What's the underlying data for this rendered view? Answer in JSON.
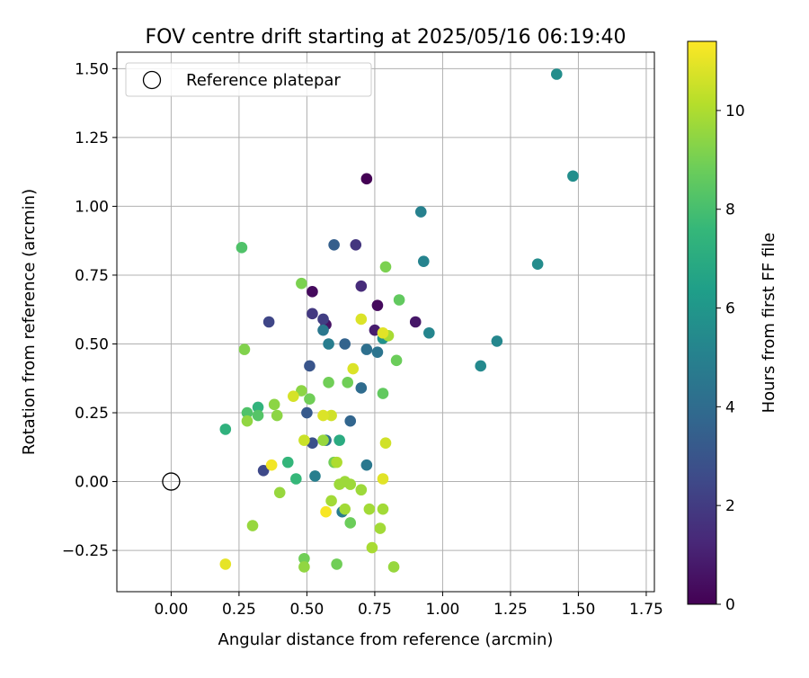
{
  "chart_data": {
    "type": "scatter",
    "title": "FOV centre drift starting at 2025/05/16 06:19:40",
    "xlabel": "Angular distance from reference (arcmin)",
    "ylabel": "Rotation from reference (arcmin)",
    "xlim": [
      -0.2,
      1.78
    ],
    "ylim": [
      -0.4,
      1.56
    ],
    "xticks": [
      0.0,
      0.25,
      0.5,
      0.75,
      1.0,
      1.25,
      1.5,
      1.75
    ],
    "xtick_labels": [
      "0.00",
      "0.25",
      "0.50",
      "0.75",
      "1.00",
      "1.25",
      "1.50",
      "1.75"
    ],
    "yticks": [
      -0.25,
      0.0,
      0.25,
      0.5,
      0.75,
      1.0,
      1.25,
      1.5
    ],
    "ytick_labels": [
      "−0.25",
      "0.00",
      "0.25",
      "0.50",
      "0.75",
      "1.00",
      "1.25",
      "1.50"
    ],
    "grid": true,
    "legend": {
      "location": "upper-left",
      "entries": [
        "Reference platepar"
      ]
    },
    "reference_point": {
      "x": 0.0,
      "y": 0.0,
      "marker": "open-circle",
      "color": "#000000"
    },
    "colorbar": {
      "label": "Hours from first FF file",
      "range": [
        0,
        11.4
      ],
      "ticks": [
        0,
        2,
        4,
        6,
        8,
        10
      ],
      "tick_labels": [
        "0",
        "2",
        "4",
        "6",
        "8",
        "10"
      ],
      "colormap": "viridis"
    },
    "points": [
      {
        "x": 0.72,
        "y": 1.1,
        "h": 0.0
      },
      {
        "x": 0.52,
        "y": 0.69,
        "h": 0.3
      },
      {
        "x": 0.76,
        "y": 0.64,
        "h": 0.3
      },
      {
        "x": 0.9,
        "y": 0.58,
        "h": 0.7
      },
      {
        "x": 0.57,
        "y": 0.57,
        "h": 0.6
      },
      {
        "x": 0.75,
        "y": 0.55,
        "h": 0.9
      },
      {
        "x": 0.7,
        "y": 0.71,
        "h": 1.4
      },
      {
        "x": 0.68,
        "y": 0.86,
        "h": 1.8
      },
      {
        "x": 0.52,
        "y": 0.61,
        "h": 1.9
      },
      {
        "x": 0.56,
        "y": 0.59,
        "h": 2.1
      },
      {
        "x": 0.36,
        "y": 0.58,
        "h": 2.4
      },
      {
        "x": 0.34,
        "y": 0.04,
        "h": 2.5
      },
      {
        "x": 0.52,
        "y": 0.14,
        "h": 2.8
      },
      {
        "x": 0.51,
        "y": 0.42,
        "h": 3.0
      },
      {
        "x": 0.5,
        "y": 0.25,
        "h": 3.2
      },
      {
        "x": 0.6,
        "y": 0.86,
        "h": 3.4
      },
      {
        "x": 0.64,
        "y": 0.5,
        "h": 3.6
      },
      {
        "x": 0.66,
        "y": 0.22,
        "h": 3.7
      },
      {
        "x": 0.7,
        "y": 0.34,
        "h": 4.0
      },
      {
        "x": 0.72,
        "y": 0.48,
        "h": 4.2
      },
      {
        "x": 0.76,
        "y": 0.47,
        "h": 4.4
      },
      {
        "x": 0.57,
        "y": 0.15,
        "h": 4.1
      },
      {
        "x": 0.72,
        "y": 0.06,
        "h": 4.6
      },
      {
        "x": 0.56,
        "y": 0.55,
        "h": 4.6
      },
      {
        "x": 0.58,
        "y": 0.5,
        "h": 4.8
      },
      {
        "x": 0.63,
        "y": -0.11,
        "h": 4.8
      },
      {
        "x": 0.53,
        "y": 0.02,
        "h": 4.9
      },
      {
        "x": 0.92,
        "y": 0.98,
        "h": 5.0
      },
      {
        "x": 0.93,
        "y": 0.8,
        "h": 5.1
      },
      {
        "x": 0.95,
        "y": 0.54,
        "h": 5.2
      },
      {
        "x": 1.2,
        "y": 0.51,
        "h": 5.3
      },
      {
        "x": 1.14,
        "y": 0.42,
        "h": 5.4
      },
      {
        "x": 1.35,
        "y": 0.79,
        "h": 5.5
      },
      {
        "x": 1.42,
        "y": 1.48,
        "h": 5.6
      },
      {
        "x": 1.48,
        "y": 1.11,
        "h": 5.6
      },
      {
        "x": 0.78,
        "y": 0.52,
        "h": 5.8
      },
      {
        "x": 0.62,
        "y": 0.15,
        "h": 7.0
      },
      {
        "x": 0.2,
        "y": 0.19,
        "h": 7.3
      },
      {
        "x": 0.32,
        "y": 0.27,
        "h": 7.4
      },
      {
        "x": 0.43,
        "y": 0.07,
        "h": 7.5
      },
      {
        "x": 0.46,
        "y": 0.01,
        "h": 7.6
      },
      {
        "x": 0.26,
        "y": 0.85,
        "h": 8.2
      },
      {
        "x": 0.28,
        "y": 0.25,
        "h": 8.2
      },
      {
        "x": 0.32,
        "y": 0.24,
        "h": 8.3
      },
      {
        "x": 0.84,
        "y": 0.66,
        "h": 8.6
      },
      {
        "x": 0.78,
        "y": 0.32,
        "h": 8.6
      },
      {
        "x": 0.83,
        "y": 0.44,
        "h": 8.8
      },
      {
        "x": 0.65,
        "y": 0.36,
        "h": 8.9
      },
      {
        "x": 0.58,
        "y": 0.36,
        "h": 8.9
      },
      {
        "x": 0.51,
        "y": 0.3,
        "h": 8.9
      },
      {
        "x": 0.6,
        "y": 0.07,
        "h": 8.9
      },
      {
        "x": 0.66,
        "y": -0.15,
        "h": 8.8
      },
      {
        "x": 0.49,
        "y": -0.28,
        "h": 8.9
      },
      {
        "x": 0.61,
        "y": -0.3,
        "h": 8.9
      },
      {
        "x": 0.79,
        "y": 0.78,
        "h": 9.1
      },
      {
        "x": 0.48,
        "y": 0.72,
        "h": 9.1
      },
      {
        "x": 0.27,
        "y": 0.48,
        "h": 9.2
      },
      {
        "x": 0.38,
        "y": 0.28,
        "h": 9.4
      },
      {
        "x": 0.39,
        "y": 0.24,
        "h": 9.4
      },
      {
        "x": 0.48,
        "y": 0.33,
        "h": 9.4
      },
      {
        "x": 0.28,
        "y": 0.22,
        "h": 9.5
      },
      {
        "x": 0.4,
        "y": -0.04,
        "h": 9.6
      },
      {
        "x": 0.3,
        "y": -0.16,
        "h": 9.6
      },
      {
        "x": 0.49,
        "y": -0.31,
        "h": 9.5
      },
      {
        "x": 0.82,
        "y": -0.31,
        "h": 9.6
      },
      {
        "x": 0.56,
        "y": 0.15,
        "h": 9.6
      },
      {
        "x": 0.62,
        "y": -0.01,
        "h": 9.7
      },
      {
        "x": 0.64,
        "y": 0.0,
        "h": 9.7
      },
      {
        "x": 0.66,
        "y": -0.01,
        "h": 9.7
      },
      {
        "x": 0.59,
        "y": -0.07,
        "h": 9.8
      },
      {
        "x": 0.64,
        "y": -0.1,
        "h": 9.8
      },
      {
        "x": 0.7,
        "y": -0.03,
        "h": 9.7
      },
      {
        "x": 0.73,
        "y": -0.1,
        "h": 9.8
      },
      {
        "x": 0.78,
        "y": -0.1,
        "h": 9.8
      },
      {
        "x": 0.77,
        "y": -0.17,
        "h": 9.8
      },
      {
        "x": 0.74,
        "y": -0.24,
        "h": 9.9
      },
      {
        "x": 0.8,
        "y": 0.53,
        "h": 9.9
      },
      {
        "x": 0.61,
        "y": 0.07,
        "h": 10.0
      },
      {
        "x": 0.49,
        "y": 0.15,
        "h": 10.5
      },
      {
        "x": 0.79,
        "y": 0.14,
        "h": 10.6
      },
      {
        "x": 0.59,
        "y": 0.24,
        "h": 10.6
      },
      {
        "x": 0.45,
        "y": 0.31,
        "h": 10.7
      },
      {
        "x": 0.67,
        "y": 0.41,
        "h": 10.8
      },
      {
        "x": 0.7,
        "y": 0.59,
        "h": 10.8
      },
      {
        "x": 0.56,
        "y": 0.24,
        "h": 10.8
      },
      {
        "x": 0.78,
        "y": 0.54,
        "h": 10.9
      },
      {
        "x": 0.78,
        "y": 0.01,
        "h": 10.9
      },
      {
        "x": 0.2,
        "y": -0.3,
        "h": 11.0
      },
      {
        "x": 0.37,
        "y": 0.06,
        "h": 11.2
      },
      {
        "x": 0.57,
        "y": -0.11,
        "h": 11.3
      }
    ]
  }
}
